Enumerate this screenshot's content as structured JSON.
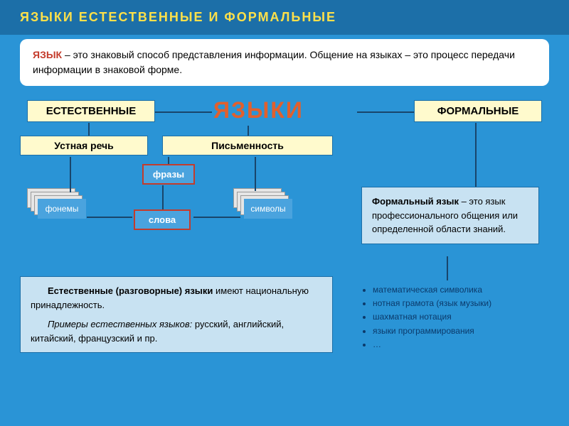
{
  "colors": {
    "slide_bg": "#2a94d6",
    "title_bg": "#1c6fa8",
    "title_text": "#fde04a",
    "accent_red": "#c43b2b",
    "accent_orange": "#e0602e",
    "pale_yellow": "#fffacd",
    "white": "#ffffff",
    "box_fill": "#4aa3de",
    "text_blue": "#0b3a6b",
    "connector": "#19456b"
  },
  "title": "ЯЗЫКИ  ЕСТЕСТВЕННЫЕ  И  ФОРМАЛЬНЫЕ",
  "definition": {
    "term": "ЯЗЫК",
    "body": " – это знаковый способ представления информации. Общение на языках – это процесс передачи информации в знаковой форме.",
    "term_color": "#c43b2b"
  },
  "center": {
    "text": "ЯЗЫКИ",
    "color": "#e0602e"
  },
  "categories": {
    "left": "ЕСТЕСТВЕННЫЕ",
    "right": "ФОРМАЛЬНЫЕ"
  },
  "subcats": {
    "oral": "Устная  речь",
    "written": "Письменность"
  },
  "nodes": {
    "phrases": "фразы",
    "words": "слова",
    "phonemes": "фонемы",
    "symbols": "символы"
  },
  "natural_block": {
    "p1_a": "Естественные (разговорные) языки",
    "p1_b": " имеют национальную принадлежность.",
    "p2_a": "Примеры естественных языков:",
    "p2_b": " русский, английский, китайский, французский и пр."
  },
  "formal_block": {
    "p1_a": "Формальный язык",
    "p1_b": " – это язык профессионального общения или определенной области знаний."
  },
  "formal_list": [
    "математическая символика",
    "нотная грамота  (язык музыки)",
    "шахматная нотация",
    "языки программирования",
    "…"
  ]
}
